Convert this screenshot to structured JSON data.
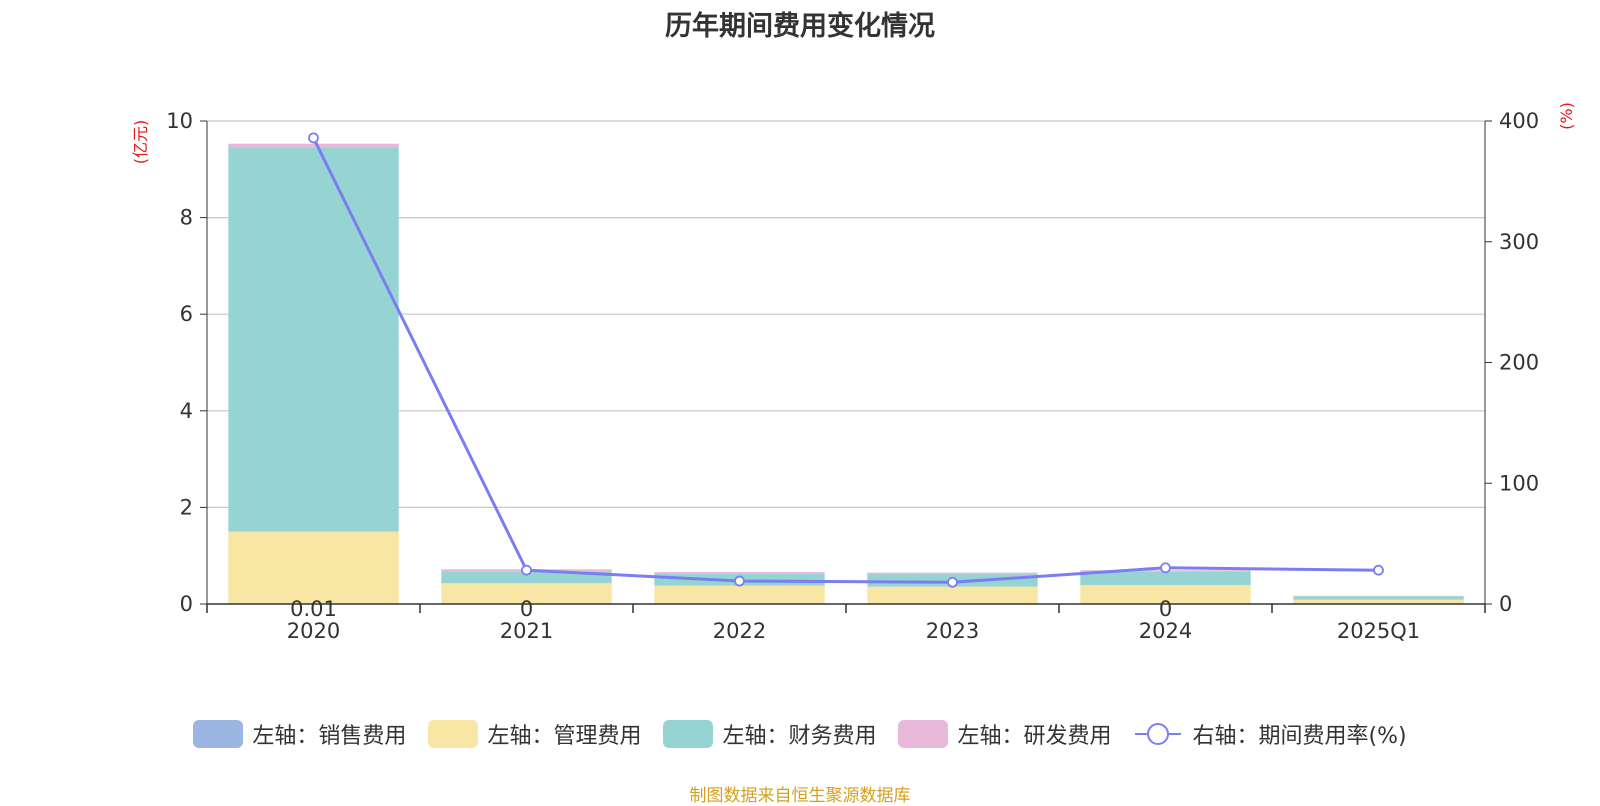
{
  "chart_data": {
    "type": "bar",
    "title": "历年期间费用变化情况",
    "categories": [
      "2020",
      "2021",
      "2022",
      "2023",
      "2024",
      "2025Q1"
    ],
    "left_axis": {
      "unit_label": "(亿元)",
      "ylim": [
        0,
        10
      ],
      "ticks": [
        "0",
        "2",
        "4",
        "6",
        "8",
        "10"
      ]
    },
    "right_axis": {
      "unit_label": "(%)",
      "ylim": [
        0,
        400
      ],
      "ticks": [
        "0",
        "100",
        "200",
        "300",
        "400"
      ]
    },
    "series": [
      {
        "name": "左轴：销售费用",
        "type": "bar",
        "stack": true,
        "color": "#9bb6e2",
        "values": [
          0.01,
          0,
          0,
          0,
          0,
          0
        ]
      },
      {
        "name": "左轴：管理费用",
        "type": "bar",
        "stack": true,
        "color": "#f7e6a4",
        "values": [
          1.49,
          0.43,
          0.38,
          0.36,
          0.39,
          0.09
        ]
      },
      {
        "name": "左轴：财务费用",
        "type": "bar",
        "stack": true,
        "color": "#96d4d4",
        "values": [
          7.95,
          0.25,
          0.25,
          0.26,
          0.28,
          0.07
        ]
      },
      {
        "name": "左轴：研发费用",
        "type": "bar",
        "stack": true,
        "color": "#e8b8d9",
        "values": [
          0.08,
          0.04,
          0.03,
          0.03,
          0.03,
          0.01
        ]
      },
      {
        "name": "右轴：期间费用率(%)",
        "type": "line",
        "axis": "right",
        "color": "#7b7ef0",
        "values": [
          386,
          28,
          19,
          18,
          30,
          28
        ]
      }
    ],
    "bar_top_labels": [
      "0.01",
      "0",
      "",
      "",
      "0",
      ""
    ],
    "grid": true,
    "legend_position": "bottom"
  },
  "source_note": "制图数据来自恒生聚源数据库"
}
